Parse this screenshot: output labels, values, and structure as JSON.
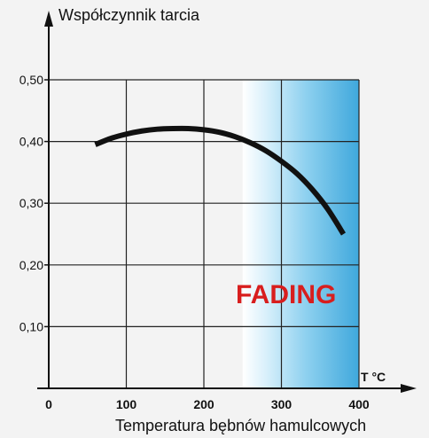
{
  "chart_data": {
    "type": "line",
    "ylabel": "Współczynnik tarcia",
    "xlabel": "Temperatura bębnów hamulcowych",
    "x_unit_label": "T °C",
    "x_ticks": [
      "0",
      "100",
      "200",
      "300",
      "400"
    ],
    "x_tick_values": [
      0,
      100,
      200,
      300,
      400
    ],
    "y_ticks": [
      "0,10",
      "0,20",
      "0,30",
      "0,40",
      "0,50"
    ],
    "y_tick_values": [
      0.1,
      0.2,
      0.3,
      0.4,
      0.5
    ],
    "xlim": [
      0,
      400
    ],
    "ylim": [
      0,
      0.5
    ],
    "grid": true,
    "shaded_region": {
      "x_start": 250,
      "x_end": 400,
      "label": "FADING",
      "color": "#4fb3e0"
    },
    "series": [
      {
        "color": "#111111",
        "x": [
          60,
          80,
          100,
          120,
          140,
          160,
          180,
          200,
          220,
          240,
          260,
          280,
          300,
          320,
          340,
          360,
          380
        ],
        "y": [
          0.395,
          0.405,
          0.412,
          0.417,
          0.42,
          0.421,
          0.421,
          0.419,
          0.415,
          0.408,
          0.398,
          0.385,
          0.368,
          0.348,
          0.322,
          0.29,
          0.25
        ]
      }
    ]
  }
}
